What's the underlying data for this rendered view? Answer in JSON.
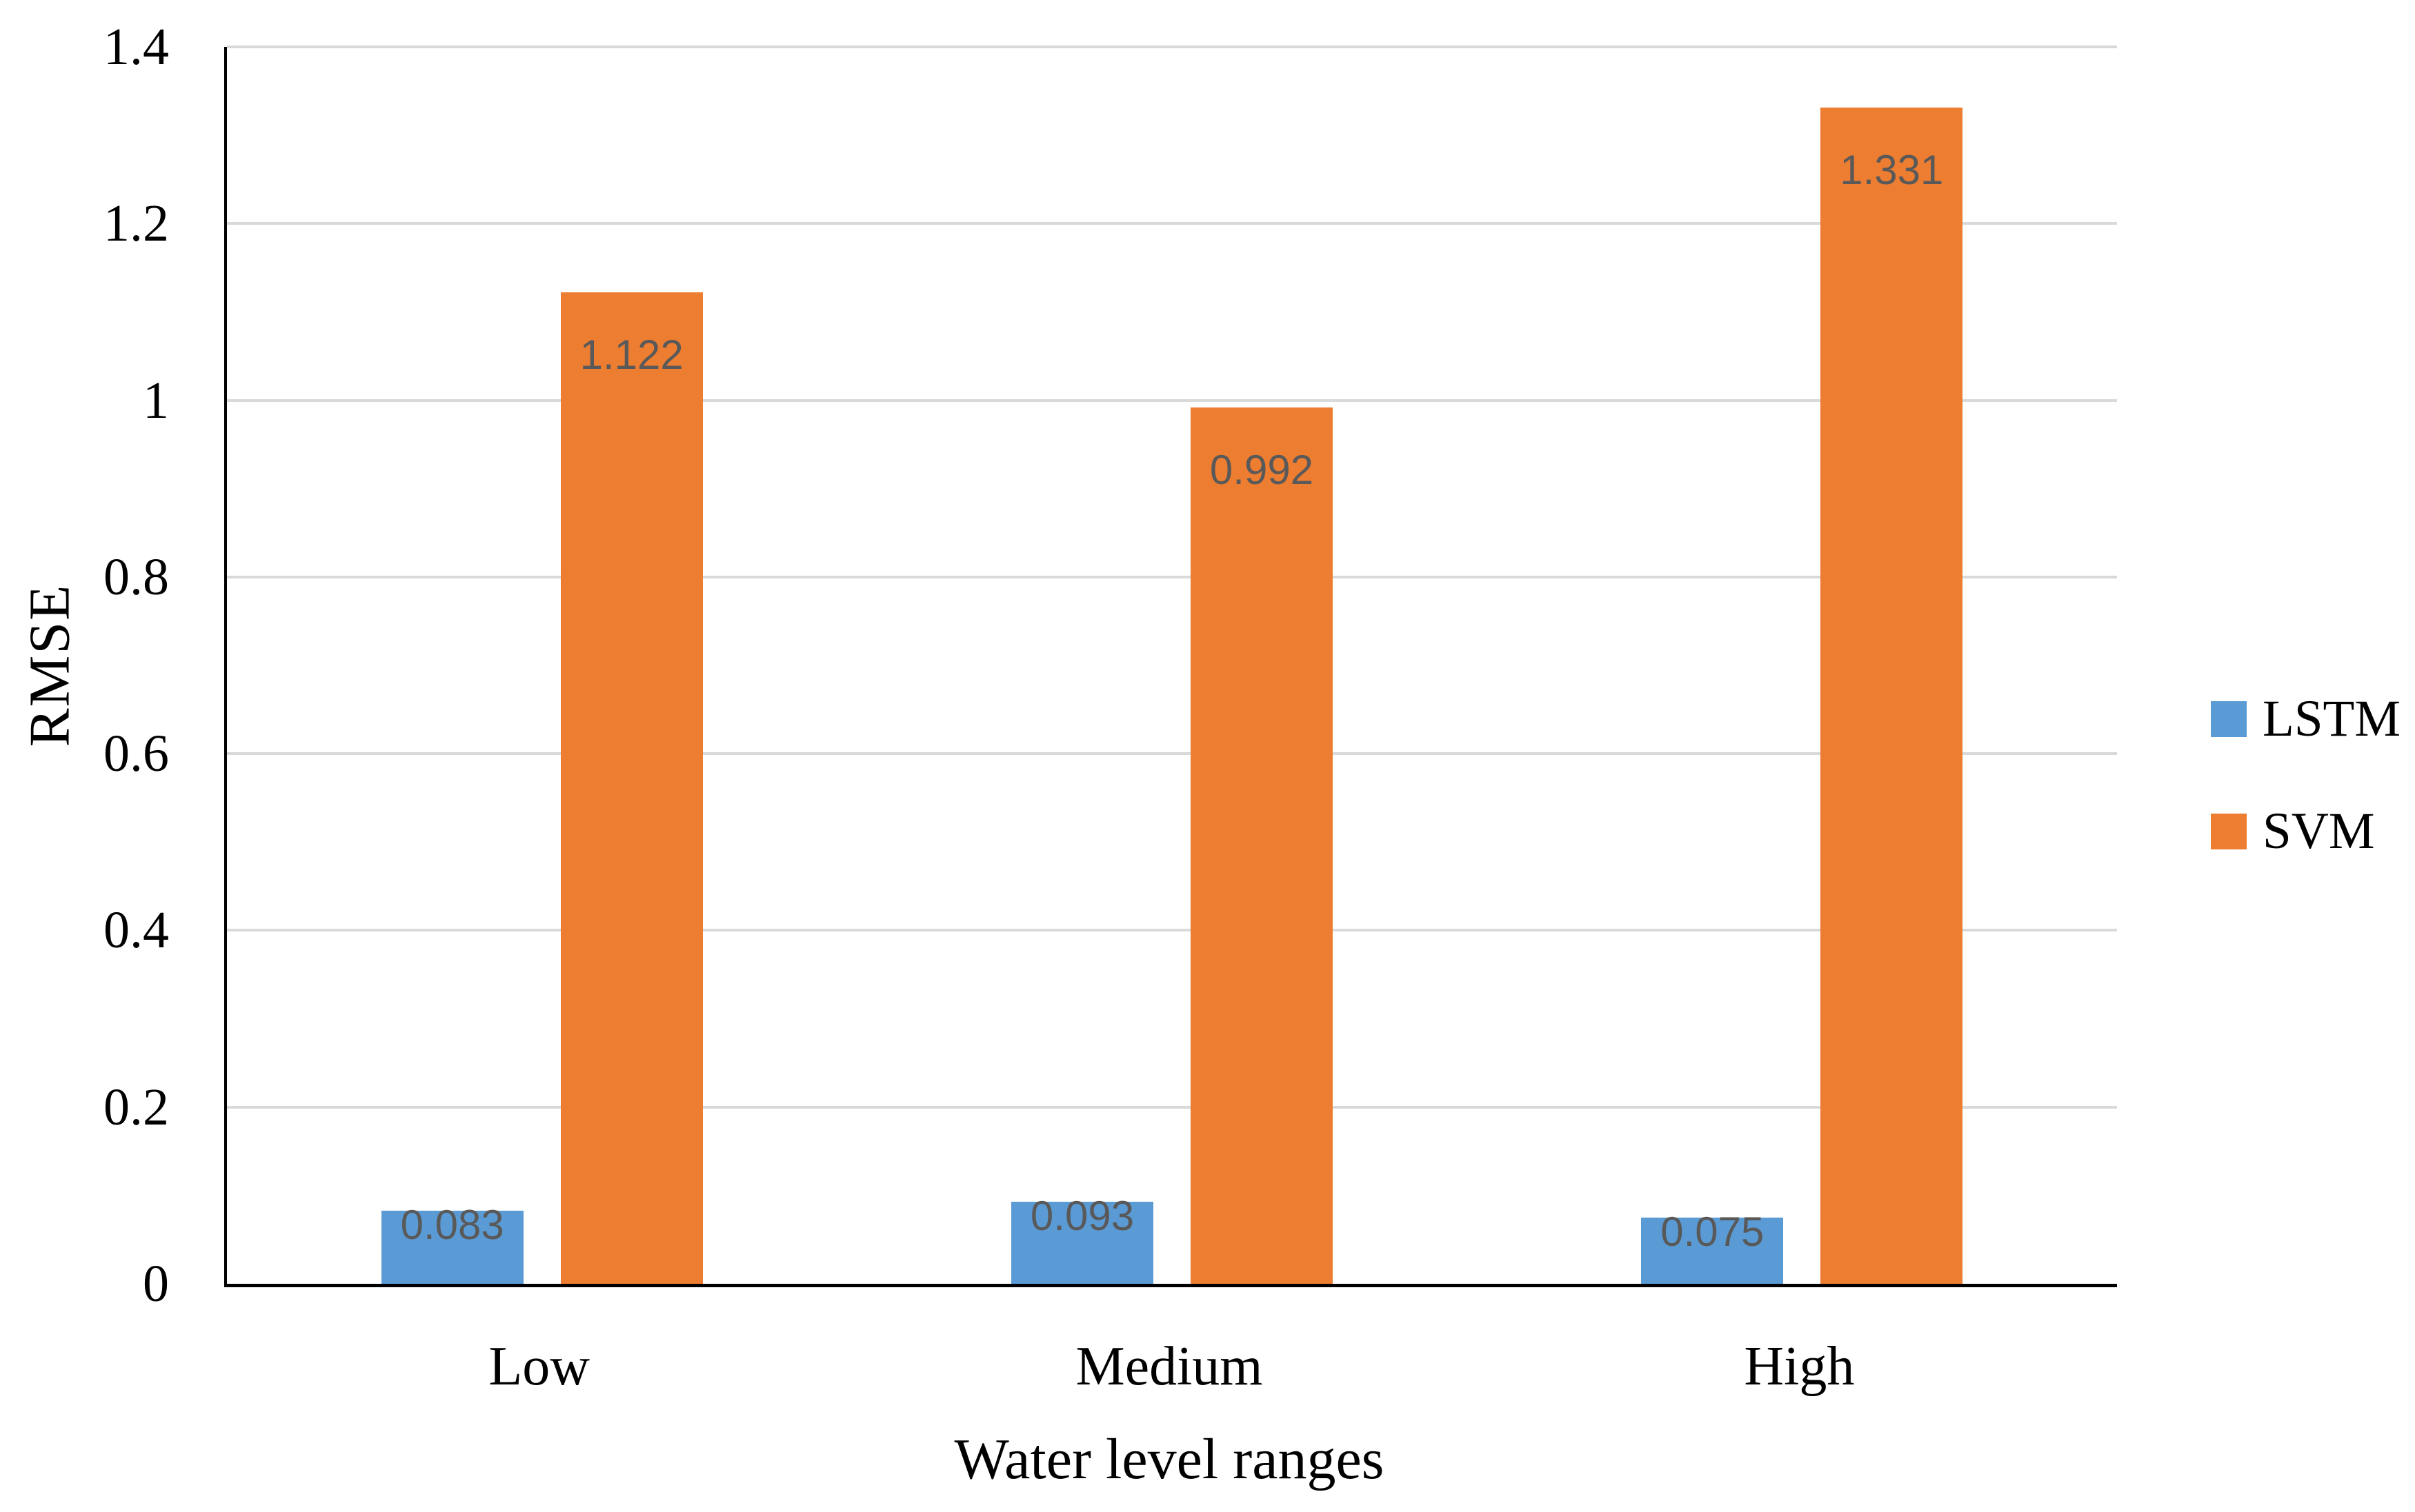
{
  "chart_data": {
    "type": "bar",
    "title": "",
    "categories": [
      "Low",
      "Medium",
      "High"
    ],
    "series": [
      {
        "name": "LSTM",
        "color": "#5B9BD5",
        "values": [
          0.083,
          0.093,
          0.075
        ],
        "data_labels": [
          "0.083",
          "0.093",
          "0.075"
        ]
      },
      {
        "name": "SVM",
        "color": "#ED7D31",
        "values": [
          1.122,
          0.992,
          1.331
        ],
        "data_labels": [
          "1.122",
          "0.992",
          "1.331"
        ]
      }
    ],
    "xlabel": "Water level ranges",
    "ylabel": "RMSE",
    "ylim": [
      0,
      1.4
    ],
    "yticks": [
      {
        "value": 0,
        "label": "0"
      },
      {
        "value": 0.2,
        "label": "0.2"
      },
      {
        "value": 0.4,
        "label": "0.4"
      },
      {
        "value": 0.6,
        "label": "0.6"
      },
      {
        "value": 0.8,
        "label": "0.8"
      },
      {
        "value": 1.0,
        "label": "1"
      },
      {
        "value": 1.2,
        "label": "1.2"
      },
      {
        "value": 1.4,
        "label": "1.4"
      }
    ],
    "grid": true,
    "legend_position": "right",
    "legend": [
      {
        "label": "LSTM",
        "color": "#5B9BD5"
      },
      {
        "label": "SVM",
        "color": "#ED7D31"
      }
    ]
  },
  "styles": {
    "background": "#FFFFFF",
    "grid_color": "#D9D9D9",
    "axis_color": "#000000",
    "data_label_color": "#595959",
    "text_color": "#000000"
  }
}
